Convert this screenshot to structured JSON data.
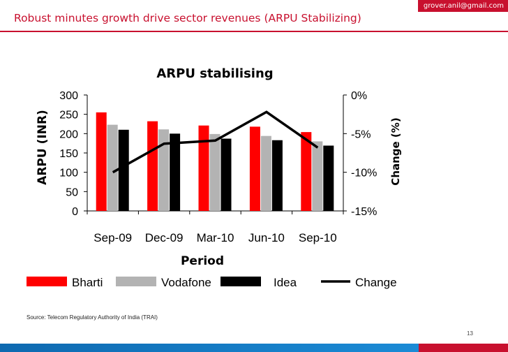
{
  "slide": {
    "email": "grover.anil@gmail.com",
    "title": "Robust minutes growth drive sector revenues (ARPU Stabilizing)",
    "source": "Source: Telecom Regulatory Authority of India (TRAI)",
    "page_number": "13"
  },
  "colors": {
    "accent": "#c8102e",
    "bharti": "#ff0000",
    "vodafone": "#b3b3b3",
    "idea": "#000000",
    "change": "#000000",
    "footer_blue": "#1b7fc8"
  },
  "chart_data": {
    "type": "bar",
    "title": "ARPU stabilising",
    "xlabel": "Period",
    "ylabel": "ARPU (INR)",
    "y2label": "Change (%)",
    "categories": [
      "Sep-09",
      "Dec-09",
      "Mar-10",
      "Jun-10",
      "Sep-10"
    ],
    "ylim": [
      0,
      300
    ],
    "yticks": [
      0,
      50,
      100,
      150,
      200,
      250,
      300
    ],
    "ytick_labels": [
      "0",
      "50",
      "100",
      "150",
      "200",
      "250",
      "300"
    ],
    "y2lim": [
      -15,
      0
    ],
    "y2ticks": [
      -15,
      -10,
      -5,
      0
    ],
    "y2tick_labels": [
      "-15%",
      "-10%",
      "-5%",
      "0%"
    ],
    "series": [
      {
        "name": "Bharti",
        "type": "bar",
        "values": [
          255,
          232,
          221,
          218,
          204
        ]
      },
      {
        "name": "Vodafone",
        "type": "bar",
        "values": [
          223,
          211,
          199,
          194,
          180
        ]
      },
      {
        "name": "Idea",
        "type": "bar",
        "values": [
          210,
          200,
          187,
          183,
          169
        ]
      },
      {
        "name": "Change",
        "type": "line",
        "axis": "secondary",
        "values": [
          -10.0,
          -6.3,
          -5.9,
          -2.2,
          -6.8
        ]
      }
    ],
    "legend_position": "bottom",
    "grid": false
  }
}
